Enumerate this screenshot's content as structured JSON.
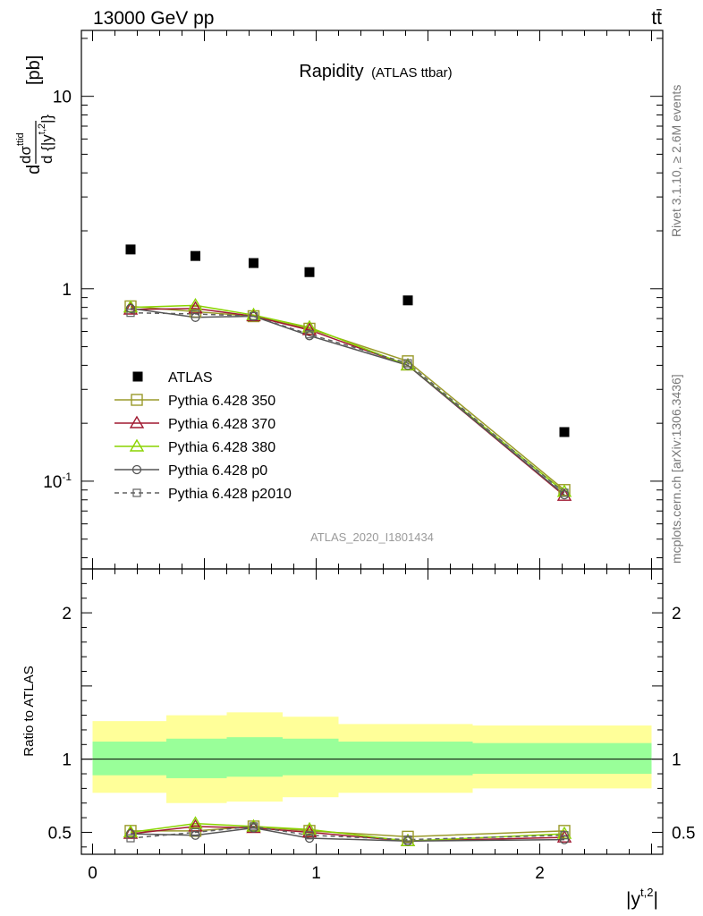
{
  "header": {
    "left": "13000 GeV pp",
    "right": "tt̄"
  },
  "title": {
    "main": "Rapidity",
    "sub": "(ATLAS ttbar)"
  },
  "side_labels": {
    "rivet": "Rivet 3.1.10, ≥ 2.6M events",
    "mcplots": "mcplots.cern.ch [arXiv:1306.3436]"
  },
  "analysis_id": "ATLAS_2020_I1801434",
  "axes": {
    "ylabel_main": "d dσ^ttid / d{|y^t,2|} [pb]",
    "ylabel_ratio": "Ratio to ATLAS",
    "xlabel": "|y^t,2|"
  },
  "colors": {
    "atlas": "#000000",
    "p350": "#9a9a2a",
    "p370": "#a01830",
    "p380": "#8ad400",
    "p0": "#555555",
    "p2010": "#606060",
    "band_inner": "#99ff99",
    "band_outer": "#ffff99"
  },
  "chart_data": [
    {
      "type": "scatter",
      "panel": "main",
      "title": "Rapidity (ATLAS ttbar)",
      "xlim": [
        -0.05,
        2.55
      ],
      "ylim": [
        0.035,
        22
      ],
      "yscale": "log",
      "yticks": [
        "10^-1",
        "1",
        "10"
      ],
      "xticks": [
        "0",
        "1",
        "2"
      ],
      "legend_position": "center-left",
      "x": [
        0.17,
        0.46,
        0.72,
        0.97,
        1.41,
        2.11
      ],
      "series": [
        {
          "name": "ATLAS",
          "marker": "filled-square",
          "values": [
            1.6,
            1.48,
            1.36,
            1.22,
            0.87,
            0.18
          ]
        },
        {
          "name": "Pythia 6.428 350",
          "marker": "open-square",
          "values": [
            0.81,
            0.76,
            0.72,
            0.62,
            0.42,
            0.09
          ]
        },
        {
          "name": "Pythia 6.428 370",
          "marker": "open-triangle",
          "values": [
            0.78,
            0.79,
            0.72,
            0.61,
            0.4,
            0.084
          ]
        },
        {
          "name": "Pythia 6.428 380",
          "marker": "open-triangle",
          "values": [
            0.8,
            0.82,
            0.73,
            0.63,
            0.4,
            0.088
          ]
        },
        {
          "name": "Pythia 6.428 p0",
          "marker": "open-circle",
          "values": [
            0.79,
            0.71,
            0.72,
            0.57,
            0.4,
            0.085
          ]
        },
        {
          "name": "Pythia 6.428 p2010",
          "marker": "open-square-dashed",
          "values": [
            0.75,
            0.74,
            0.72,
            0.58,
            0.41,
            0.087
          ]
        }
      ]
    },
    {
      "type": "line",
      "panel": "ratio",
      "ylabel": "Ratio to ATLAS",
      "xlim": [
        -0.05,
        2.55
      ],
      "ylim": [
        0.35,
        2.3
      ],
      "yticks": [
        "0.5",
        "1",
        "2"
      ],
      "x": [
        0.17,
        0.46,
        0.72,
        0.97,
        1.41,
        2.11
      ],
      "bins": [
        [
          0,
          0.33
        ],
        [
          0.33,
          0.6
        ],
        [
          0.6,
          0.85
        ],
        [
          0.85,
          1.1
        ],
        [
          1.1,
          1.7
        ],
        [
          1.7,
          2.5
        ]
      ],
      "band_inner": [
        [
          0.89,
          1.12
        ],
        [
          0.87,
          1.14
        ],
        [
          0.88,
          1.15
        ],
        [
          0.89,
          1.14
        ],
        [
          0.89,
          1.12
        ],
        [
          0.9,
          1.11
        ]
      ],
      "band_outer": [
        [
          0.77,
          1.26
        ],
        [
          0.7,
          1.3
        ],
        [
          0.71,
          1.32
        ],
        [
          0.74,
          1.29
        ],
        [
          0.77,
          1.24
        ],
        [
          0.8,
          1.23
        ]
      ],
      "series": [
        {
          "name": "Pythia 6.428 350",
          "values": [
            0.51,
            0.51,
            0.54,
            0.51,
            0.47,
            0.51
          ]
        },
        {
          "name": "Pythia 6.428 370",
          "values": [
            0.49,
            0.54,
            0.53,
            0.5,
            0.44,
            0.465
          ]
        },
        {
          "name": "Pythia 6.428 380",
          "values": [
            0.5,
            0.56,
            0.54,
            0.52,
            0.44,
            0.49
          ]
        },
        {
          "name": "Pythia 6.428 p0",
          "values": [
            0.49,
            0.48,
            0.53,
            0.46,
            0.44,
            0.45
          ]
        },
        {
          "name": "Pythia 6.428 p2010",
          "values": [
            0.46,
            0.5,
            0.54,
            0.48,
            0.45,
            0.48
          ]
        }
      ]
    }
  ]
}
